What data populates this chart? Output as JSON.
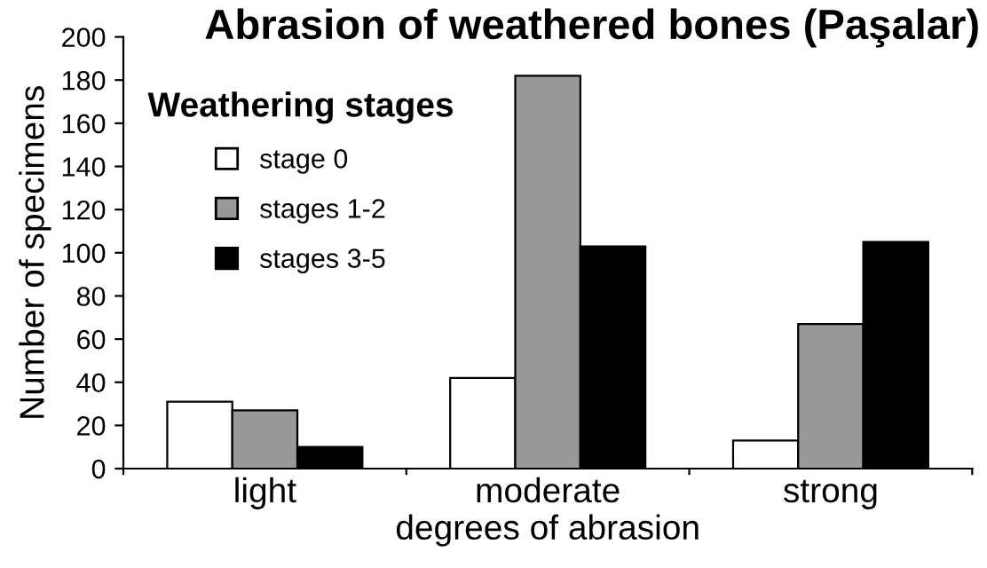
{
  "chart_data": {
    "type": "bar",
    "title": "Abrasion of weathered bones (Paşalar)",
    "xlabel": "degrees of abrasion",
    "ylabel": "Number of specimens",
    "legend_title": "Weathering stages",
    "categories": [
      "light",
      "moderate",
      "strong"
    ],
    "series": [
      {
        "name": "stage 0",
        "color": "#ffffff",
        "values": [
          31,
          42,
          13
        ]
      },
      {
        "name": "stages 1-2",
        "color": "#999999",
        "values": [
          27,
          182,
          67
        ]
      },
      {
        "name": "stages 3-5",
        "color": "#000000",
        "values": [
          10,
          103,
          105
        ]
      }
    ],
    "ylim": [
      0,
      200
    ],
    "yticks": [
      0,
      20,
      40,
      60,
      80,
      100,
      120,
      140,
      160,
      180,
      200
    ],
    "grid": false,
    "legend": "top left"
  }
}
